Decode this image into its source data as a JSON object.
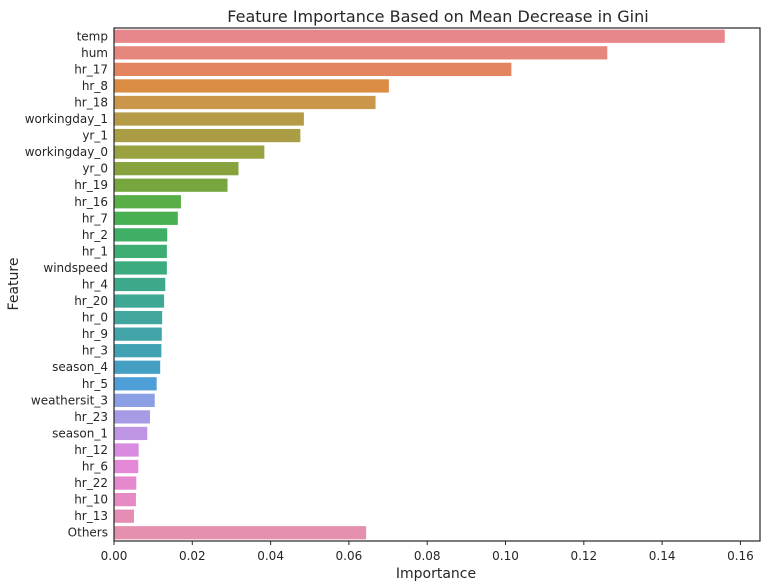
{
  "chart_data": {
    "type": "bar",
    "orientation": "horizontal",
    "title": "Feature Importance Based on Mean Decrease in Gini",
    "xlabel": "Importance",
    "ylabel": "Feature",
    "xlim": [
      0,
      0.165
    ],
    "xticks": [
      "0.00",
      "0.02",
      "0.04",
      "0.06",
      "0.08",
      "0.10",
      "0.12",
      "0.14",
      "0.16"
    ],
    "grid": false,
    "categories": [
      "temp",
      "hum",
      "hr_17",
      "hr_8",
      "hr_18",
      "workingday_1",
      "yr_1",
      "workingday_0",
      "yr_0",
      "hr_19",
      "hr_16",
      "hr_7",
      "hr_2",
      "hr_1",
      "windspeed",
      "hr_4",
      "hr_20",
      "hr_0",
      "hr_9",
      "hr_3",
      "season_4",
      "hr_5",
      "weathersit_3",
      "hr_23",
      "season_1",
      "hr_12",
      "hr_6",
      "hr_22",
      "hr_10",
      "hr_13",
      "Others"
    ],
    "values": [
      0.156,
      0.126,
      0.1015,
      0.0702,
      0.0668,
      0.0485,
      0.0476,
      0.0384,
      0.0318,
      0.029,
      0.0171,
      0.0163,
      0.0136,
      0.0135,
      0.0135,
      0.0131,
      0.0128,
      0.0123,
      0.0122,
      0.0121,
      0.0118,
      0.0109,
      0.0104,
      0.0092,
      0.0085,
      0.0063,
      0.0062,
      0.0057,
      0.0056,
      0.0051,
      0.0644
    ],
    "colors": [
      "#e8878b",
      "#e6877e",
      "#e3855f",
      "#d98c42",
      "#c9964a",
      "#b59a48",
      "#aa9d44",
      "#9aa13f",
      "#88a33d",
      "#78a63e",
      "#5aae48",
      "#49b052",
      "#3faf66",
      "#3dad73",
      "#3dab80",
      "#3ea98a",
      "#3fa895",
      "#40a69e",
      "#40a4a8",
      "#41a2b3",
      "#449fc2",
      "#4e9ed7",
      "#8b9fe4",
      "#a89be5",
      "#be95e2",
      "#d98be0",
      "#e588d7",
      "#e688cd",
      "#e78ac3",
      "#e68db5",
      "#e690b0"
    ]
  }
}
